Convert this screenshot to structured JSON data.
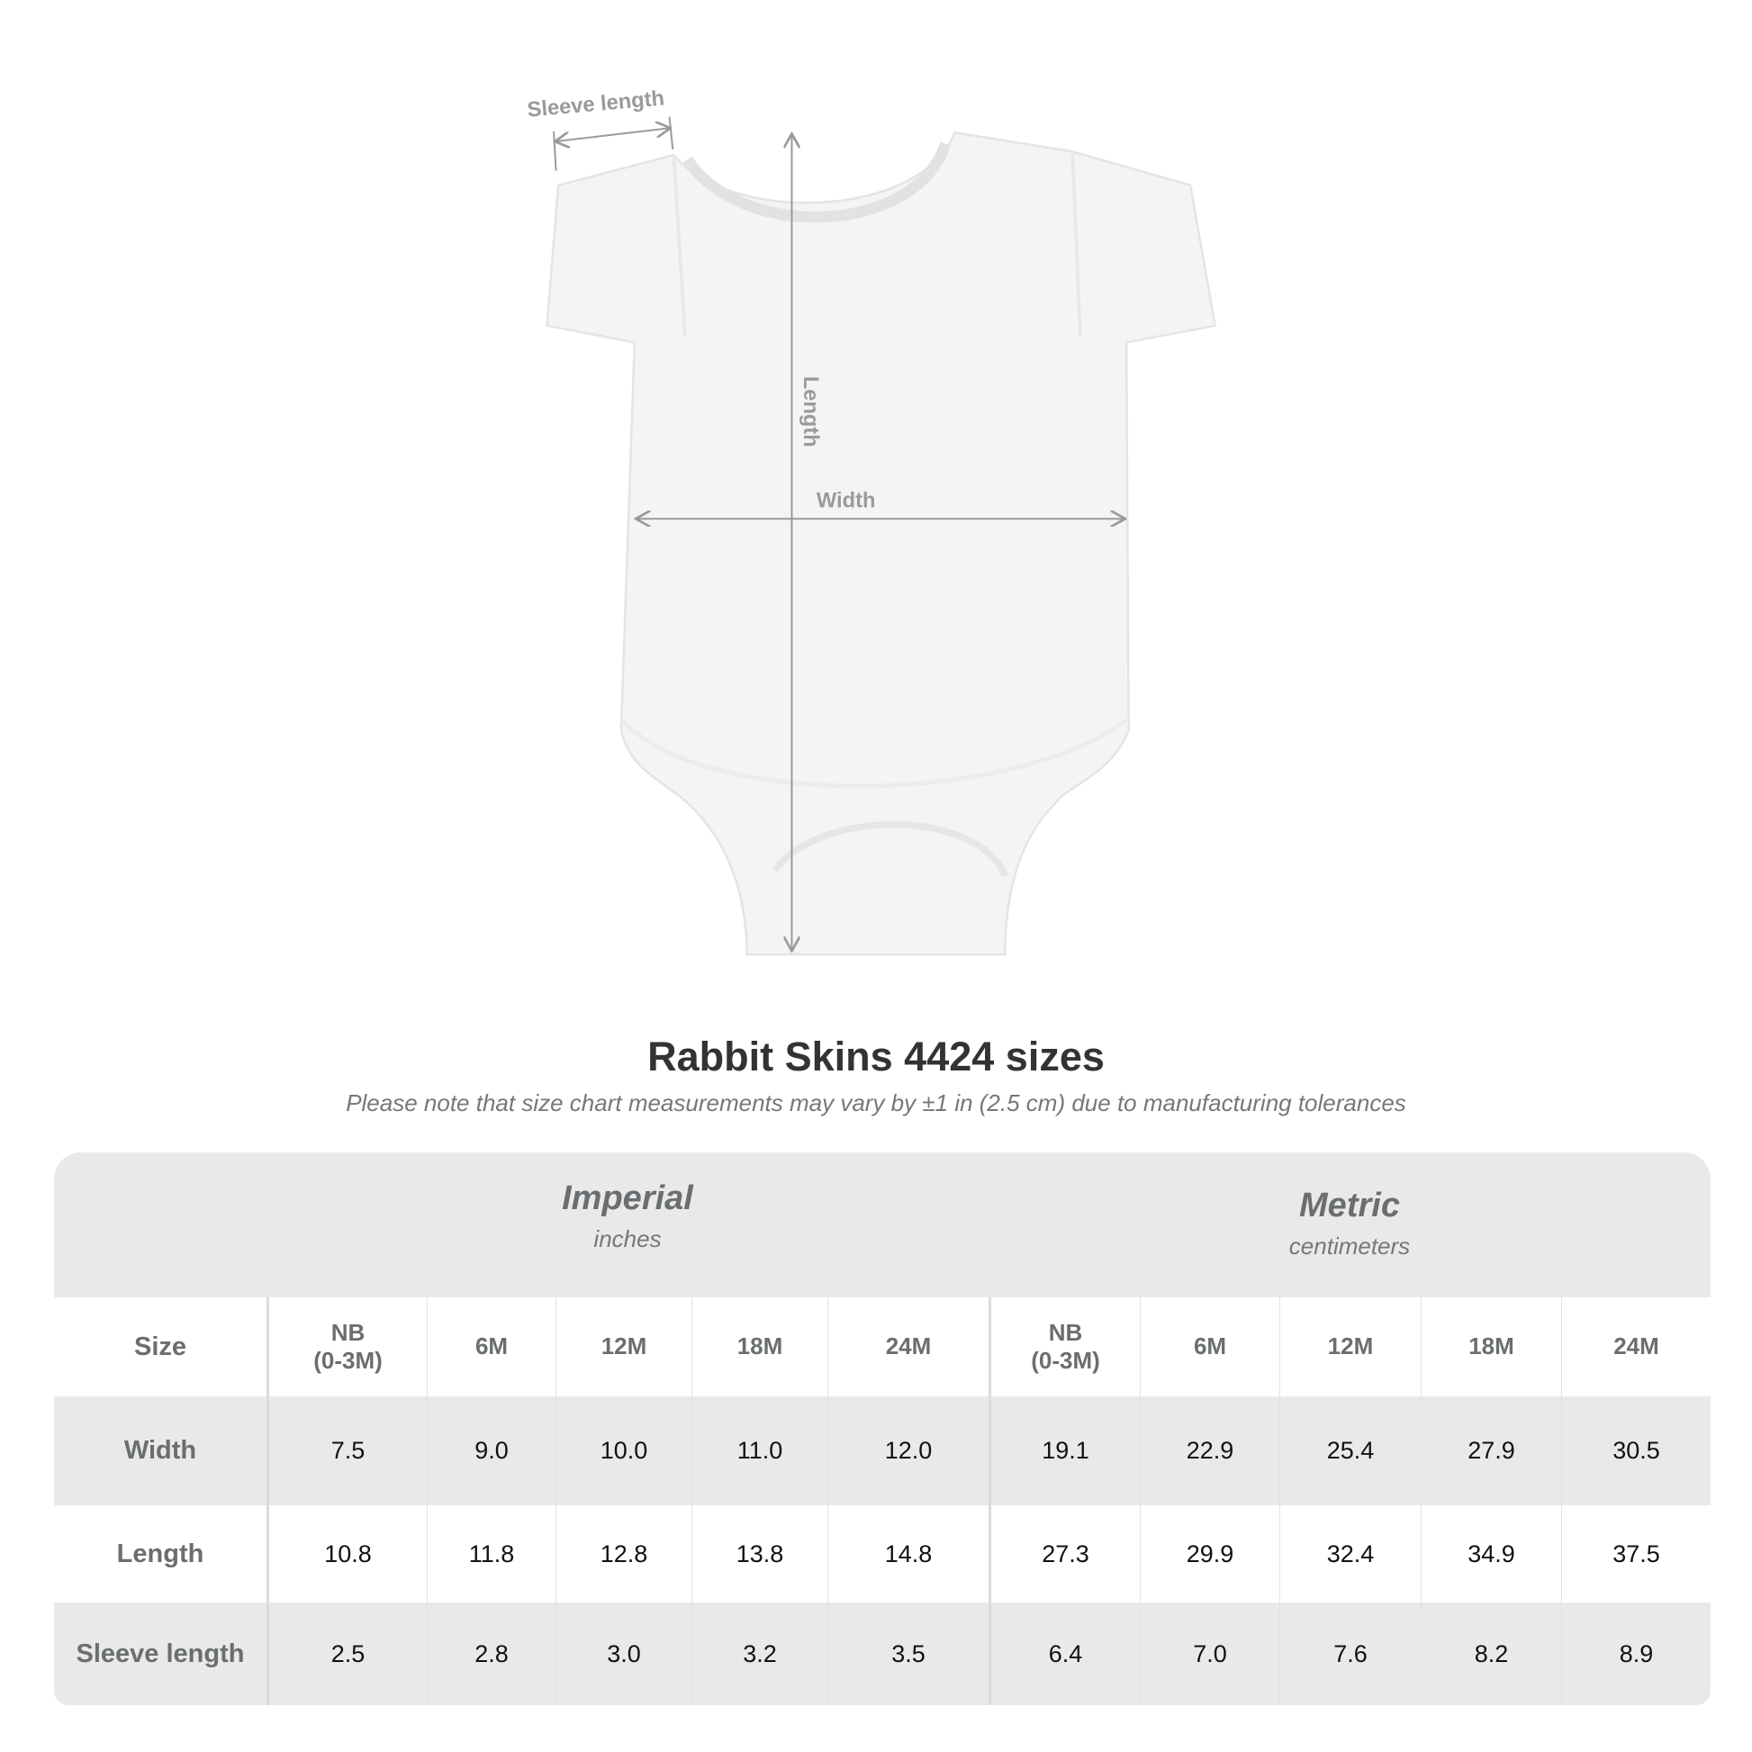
{
  "diagram": {
    "labels": {
      "sleeve": "Sleeve length",
      "length": "Length",
      "width": "Width"
    },
    "garment_color": "#f4f4f4",
    "arrow_color": "#9a9a9a"
  },
  "title": "Rabbit Skins 4424 sizes",
  "subtitle": "Please note that size chart measurements may vary by ±1 in (2.5 cm) due to manufacturing tolerances",
  "table": {
    "imperial": {
      "name": "Imperial",
      "unit": "inches"
    },
    "metric": {
      "name": "Metric",
      "unit": "centimeters"
    },
    "header": [
      "Size",
      "NB\n(0-3M)",
      "6M",
      "12M",
      "18M",
      "24M",
      "NB\n(0-3M)",
      "6M",
      "12M",
      "18M",
      "24M"
    ],
    "rows": [
      [
        "Width",
        "7.5",
        "9.0",
        "10.0",
        "11.0",
        "12.0",
        "19.1",
        "22.9",
        "25.4",
        "27.9",
        "30.5"
      ],
      [
        "Length",
        "10.8",
        "11.8",
        "12.8",
        "13.8",
        "14.8",
        "27.3",
        "29.9",
        "32.4",
        "34.9",
        "37.5"
      ],
      [
        "Sleeve length",
        "2.5",
        "2.8",
        "3.0",
        "3.2",
        "3.5",
        "6.4",
        "7.0",
        "7.6",
        "8.2",
        "8.9"
      ]
    ],
    "band_color": "#e9e9e9",
    "label_color": "#6a6e70"
  }
}
